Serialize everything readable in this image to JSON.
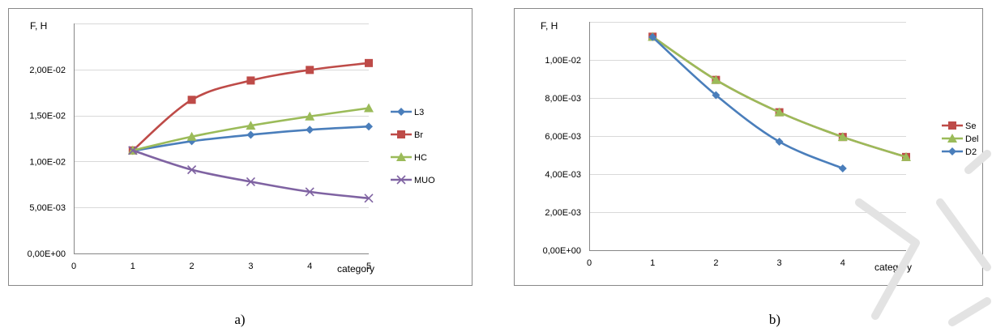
{
  "colors": {
    "blue": "#4A7EBB",
    "red": "#BE4B48",
    "green": "#9BBB59",
    "purple": "#7F63A2",
    "grid": "#D9D9D9",
    "axis": "#868686",
    "border": "#888888"
  },
  "chart_data": [
    {
      "type": "line",
      "ylabel": "F, H",
      "xlabel": "category",
      "caption": "a)",
      "xlim": [
        0,
        5
      ],
      "ylim": [
        0,
        0.025
      ],
      "y_step": 0.005,
      "y_tick_labels": [
        "0,00E+00",
        "5,00E-03",
        "1,00E-02",
        "1,50E-02",
        "2,00E-02"
      ],
      "x_tick_labels": [
        "0",
        "1",
        "2",
        "3",
        "4",
        "5"
      ],
      "grid": true,
      "smooth": true,
      "legend_position": "right",
      "series": [
        {
          "name": "L3",
          "color": "#4A7EBB",
          "marker": "diamond",
          "x": [
            1,
            2,
            3,
            4,
            5
          ],
          "values": [
            0.01115,
            0.0122,
            0.0129,
            0.01345,
            0.0138
          ]
        },
        {
          "name": "Br",
          "color": "#BE4B48",
          "marker": "square",
          "x": [
            1,
            2,
            3,
            4,
            5
          ],
          "values": [
            0.0112,
            0.0167,
            0.0188,
            0.01995,
            0.0207
          ]
        },
        {
          "name": "HC",
          "color": "#9BBB59",
          "marker": "triangle",
          "x": [
            1,
            2,
            3,
            4,
            5
          ],
          "values": [
            0.0112,
            0.0127,
            0.0139,
            0.0149,
            0.0158
          ]
        },
        {
          "name": "MUO",
          "color": "#7F63A2",
          "marker": "x",
          "x": [
            1,
            2,
            3,
            4,
            5
          ],
          "values": [
            0.0112,
            0.0091,
            0.0078,
            0.0067,
            0.006
          ]
        }
      ]
    },
    {
      "type": "line",
      "ylabel": "F, H",
      "xlabel": "category",
      "caption": "b)",
      "xlim": [
        0,
        5
      ],
      "ylim": [
        0,
        0.012
      ],
      "y_step": 0.002,
      "y_tick_labels": [
        "0,00E+00",
        "2,00E-03",
        "4,00E-03",
        "6,00E-03",
        "8,00E-03",
        "1,00E-02"
      ],
      "x_tick_labels": [
        "0",
        "1",
        "2",
        "3",
        "4",
        "5"
      ],
      "grid": true,
      "smooth": true,
      "legend_position": "right",
      "series": [
        {
          "name": "Se",
          "color": "#BE4B48",
          "marker": "square",
          "x": [
            1,
            2,
            3,
            4,
            5
          ],
          "values": [
            0.01122,
            0.00895,
            0.00725,
            0.00595,
            0.0049
          ]
        },
        {
          "name": "Del",
          "color": "#9BBB59",
          "marker": "triangle",
          "x": [
            1,
            2,
            3,
            4,
            5
          ],
          "values": [
            0.01122,
            0.00895,
            0.00725,
            0.00595,
            0.0049
          ]
        },
        {
          "name": "D2",
          "color": "#4A7EBB",
          "marker": "diamond",
          "x": [
            1,
            2,
            3,
            4
          ],
          "values": [
            0.0112,
            0.00815,
            0.0057,
            0.0043
          ]
        }
      ]
    }
  ]
}
